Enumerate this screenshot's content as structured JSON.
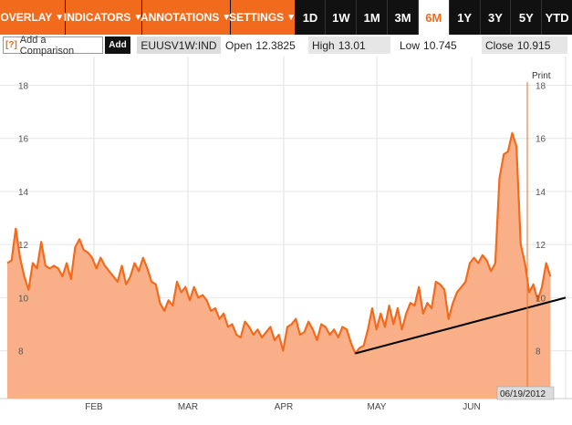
{
  "toolbar": {
    "menus": [
      {
        "id": "overlay",
        "label": "OVERLAY"
      },
      {
        "id": "indicators",
        "label": "INDICATORS"
      },
      {
        "id": "annotations",
        "label": "ANNOTATIONS"
      },
      {
        "id": "settings",
        "label": "SETTINGS"
      }
    ],
    "ranges": [
      "1D",
      "1W",
      "1M",
      "3M",
      "6M",
      "1Y",
      "3Y",
      "5Y",
      "YTD"
    ],
    "active_range": "6M",
    "arrow_glyph": "▼"
  },
  "infobar": {
    "compare_icon": "[?]",
    "compare_placeholder": "Add a Comparison",
    "add_label": "Add",
    "ticker": "EUUSV1W:IND",
    "open_label": "Open",
    "open_value": "12.3825",
    "high_label": "High",
    "high_value": "13.01",
    "low_label": "Low",
    "low_value": "10.745",
    "close_label": "Close",
    "close_value": "10.915"
  },
  "chart": {
    "print_label": "Print",
    "date_label": "06/19/2012"
  },
  "colors": {
    "accent": "#f26b1d",
    "area_fill": "#f9b088",
    "line": "#f26b1d",
    "trendline": "#000000"
  },
  "chart_data": {
    "type": "area",
    "x_labels": [
      "FEB",
      "MAR",
      "APR",
      "MAY",
      "JUN"
    ],
    "y_ticks": [
      8,
      10,
      12,
      14,
      16,
      18
    ],
    "ylim": [
      6.2,
      18.6
    ],
    "values": [
      11.3,
      11.4,
      12.6,
      11.5,
      10.8,
      10.3,
      11.3,
      11.1,
      12.1,
      11.2,
      11.1,
      11.2,
      11.1,
      10.8,
      11.3,
      10.7,
      11.9,
      12.2,
      11.8,
      11.7,
      11.5,
      11.1,
      11.5,
      11.2,
      11.0,
      10.8,
      10.6,
      11.2,
      10.5,
      10.8,
      11.3,
      11.0,
      11.5,
      11.1,
      10.6,
      10.5,
      9.8,
      9.5,
      9.9,
      9.7,
      10.6,
      10.2,
      10.4,
      9.9,
      10.4,
      10.0,
      10.1,
      9.9,
      9.5,
      9.6,
      9.2,
      9.4,
      8.9,
      9.0,
      8.6,
      8.5,
      9.1,
      8.9,
      8.6,
      8.8,
      8.5,
      8.7,
      8.9,
      8.4,
      8.6,
      8.0,
      8.9,
      9.0,
      9.2,
      8.6,
      8.7,
      9.1,
      8.8,
      8.4,
      9.0,
      8.9,
      8.6,
      8.8,
      8.5,
      8.9,
      8.8,
      8.3,
      7.9,
      8.1,
      8.2,
      8.8,
      9.6,
      8.8,
      9.4,
      8.9,
      9.7,
      9.0,
      9.6,
      8.8,
      9.4,
      9.8,
      9.7,
      10.4,
      9.4,
      9.8,
      9.6,
      10.6,
      10.5,
      10.3,
      9.2,
      9.8,
      10.2,
      10.4,
      10.6,
      11.3,
      11.5,
      11.3,
      11.6,
      11.4,
      11.0,
      11.3,
      14.5,
      15.4,
      15.5,
      16.2,
      15.7,
      12.0,
      11.3,
      10.2,
      10.5,
      9.9,
      10.4,
      11.3,
      10.8
    ],
    "trendline": {
      "start_index": 82,
      "start_value": 7.9,
      "end_index": 128,
      "end_value": 10.0
    }
  }
}
